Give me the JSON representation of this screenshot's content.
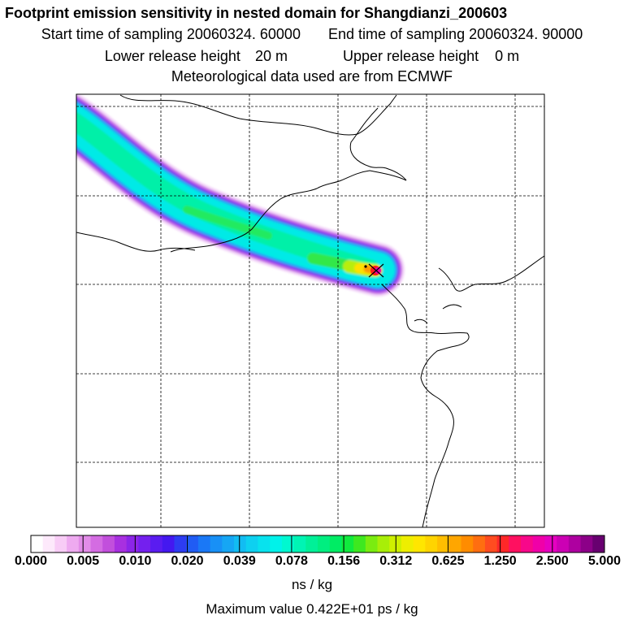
{
  "header": {
    "title": "Footprint emission sensitivity in nested domain for Shangdianzi_200603",
    "start_label": "Start time of sampling",
    "start_value": "20060324. 60000",
    "end_label": "End time of sampling",
    "end_value": "20060324. 90000",
    "lower_label": "Lower release height",
    "lower_value": "20 m",
    "upper_label": "Upper release height",
    "upper_value": "0 m",
    "met_line": "Meteorological data used are from ECMWF"
  },
  "map": {
    "station": "Shangdianzi",
    "max_color": "#ff1a1a",
    "plume_core_color": "#ffe000"
  },
  "colorbar": {
    "ticks": [
      "0.000",
      "0.005",
      "0.010",
      "0.020",
      "0.039",
      "0.078",
      "0.156",
      "0.312",
      "0.625",
      "1.250",
      "2.500",
      "5.000"
    ],
    "colors": [
      "#ffffff",
      "#fde9fb",
      "#f8ccf6",
      "#eeaaf0",
      "#e28ce8",
      "#d46ce2",
      "#c24fdc",
      "#a830e0",
      "#8c25e8",
      "#7420ee",
      "#5a1cf0",
      "#4418f0",
      "#2d3cf2",
      "#205cf4",
      "#1a78f6",
      "#1890f6",
      "#16a6f4",
      "#12bcf2",
      "#0ed0f0",
      "#08e2ee",
      "#00f2ea",
      "#00f8d0",
      "#00f4b4",
      "#00f098",
      "#00ee80",
      "#00ec64",
      "#10ea3e",
      "#3ee820",
      "#7aec10",
      "#a8ee08",
      "#cef000",
      "#eeee00",
      "#ffe600",
      "#ffd400",
      "#ffbe00",
      "#ffa600",
      "#ff8c00",
      "#ff6e10",
      "#ff4c20",
      "#ff2828",
      "#ff1060",
      "#f8088a",
      "#f000a8",
      "#e600c0",
      "#cc00b4",
      "#ae00a0",
      "#8c0088",
      "#680070"
    ],
    "units": "ns / kg"
  },
  "footer": {
    "max_label": "Maximum value",
    "max_value": "0.422E+01",
    "max_units": "ps / kg"
  }
}
